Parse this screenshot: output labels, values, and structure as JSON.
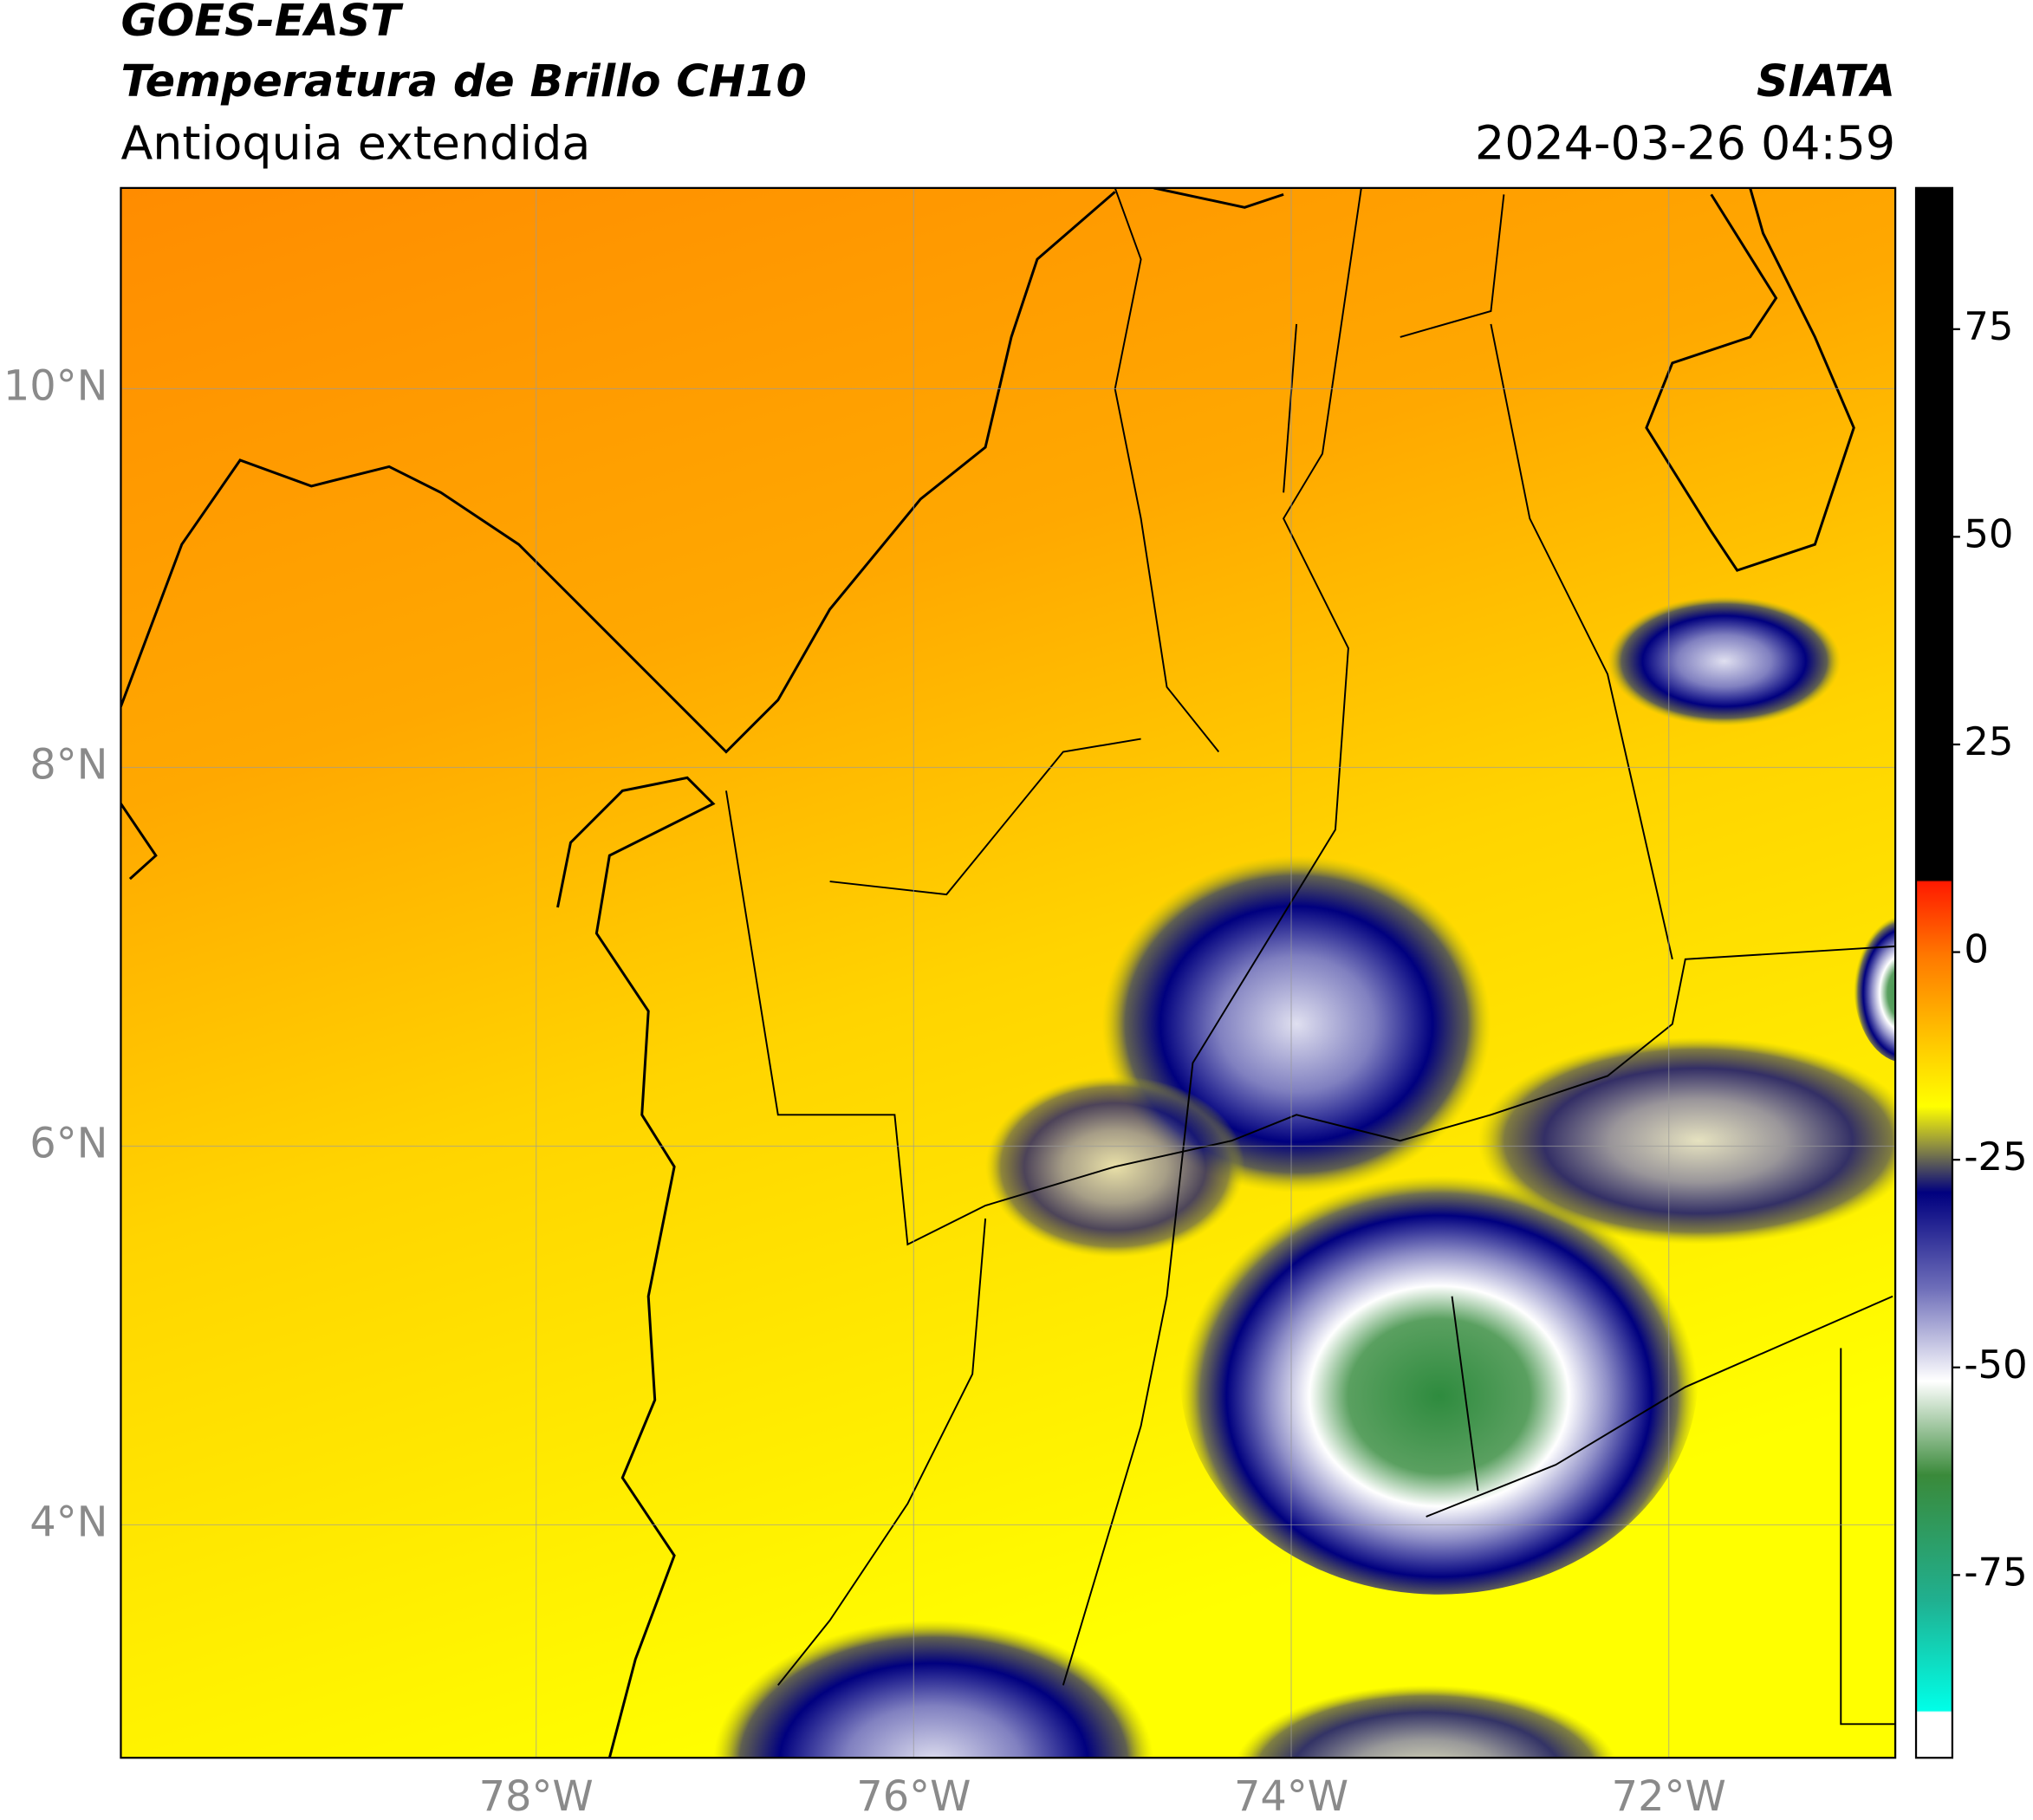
{
  "header": {
    "title": "GOES-EAST",
    "subtitle": "Temperatura de Brillo CH10",
    "region": "Antioquia extendida",
    "source": "SIATA",
    "timestamp": "2024-03-26 04:59"
  },
  "map": {
    "xlim": [
      -80.2,
      -70.8
    ],
    "ylim": [
      2.77,
      11.06
    ],
    "xticks": [
      {
        "value": -78,
        "label": "78°W"
      },
      {
        "value": -76,
        "label": "76°W"
      },
      {
        "value": -74,
        "label": "74°W"
      },
      {
        "value": -72,
        "label": "72°W"
      }
    ],
    "yticks": [
      {
        "value": 10,
        "label": "10°N"
      },
      {
        "value": 8,
        "label": "8°N"
      },
      {
        "value": 6,
        "label": "6°N"
      },
      {
        "value": 4,
        "label": "4°N"
      }
    ]
  },
  "colorbar": {
    "ylim": [
      -97,
      92
    ],
    "yticks": [
      75,
      50,
      25,
      0,
      -25,
      -50,
      -75
    ]
  }
}
